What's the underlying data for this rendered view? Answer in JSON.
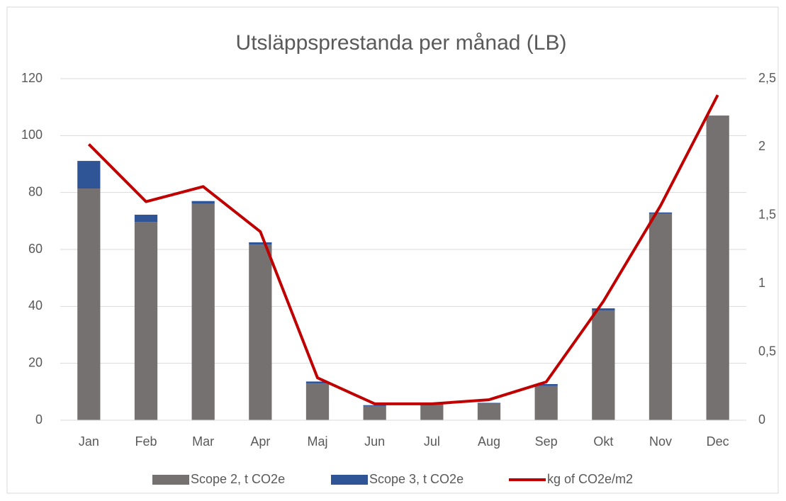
{
  "chart_data": {
    "type": "bar",
    "title": "Utsläppsprestanda per månad (LB)",
    "categories": [
      "Jan",
      "Feb",
      "Mar",
      "Apr",
      "Maj",
      "Jun",
      "Jul",
      "Aug",
      "Sep",
      "Okt",
      "Nov",
      "Dec"
    ],
    "series": [
      {
        "name": "Scope 2, t CO2e",
        "color": "#767171",
        "type": "bar",
        "values": [
          81.4,
          69.7,
          76,
          61.7,
          12.9,
          5,
          5.5,
          5.8,
          12,
          38.5,
          72.5,
          106.8
        ]
      },
      {
        "name": "Scope 3, t CO2e",
        "color": "#2f5597",
        "type": "bar",
        "values": [
          9.7,
          2.5,
          1,
          0.8,
          0.7,
          0.3,
          0.3,
          0.3,
          0.7,
          0.8,
          0.5,
          0.2
        ]
      },
      {
        "name": "kg of CO2e/m2",
        "color": "#c00000",
        "type": "line",
        "axis": "y2",
        "values": [
          2.02,
          1.6,
          1.71,
          1.38,
          0.31,
          0.12,
          0.12,
          0.15,
          0.28,
          0.87,
          1.57,
          2.38
        ]
      }
    ],
    "stacked": true,
    "ylim": [
      0,
      120
    ],
    "yticks": [
      0,
      20,
      40,
      60,
      80,
      100,
      120
    ],
    "y2lim": [
      0,
      2.5
    ],
    "y2ticks": [
      0,
      {
        "value": 0.5,
        "label": "0,5"
      },
      1,
      {
        "value": 1.5,
        "label": "1,5"
      },
      2,
      {
        "value": 2.5,
        "label": "2,5"
      }
    ],
    "grid": true,
    "legend": "bottom"
  }
}
